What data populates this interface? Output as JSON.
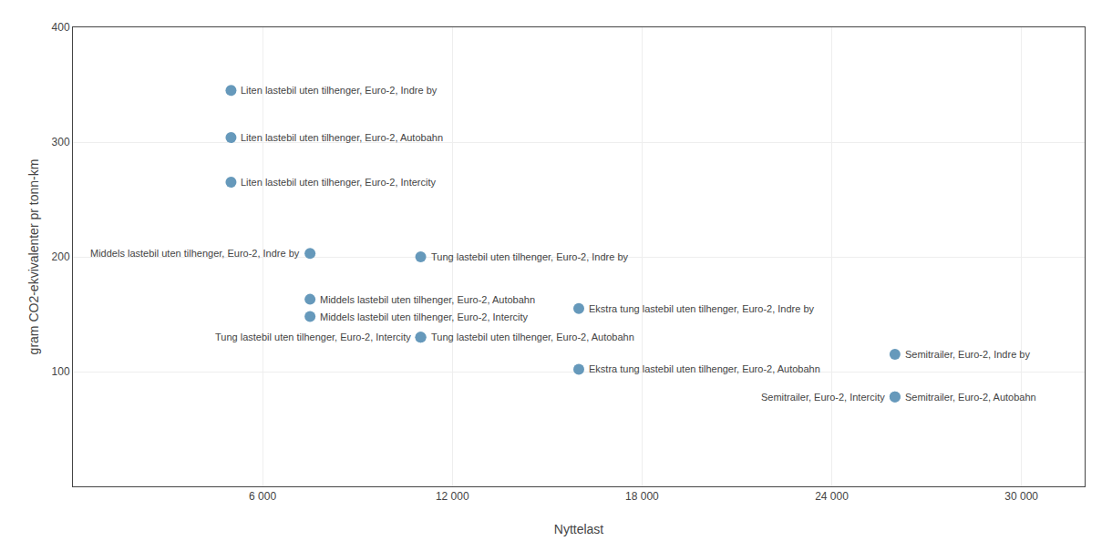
{
  "chart_data": {
    "type": "scatter",
    "x": [
      5000,
      5000,
      5000,
      7500,
      7500,
      7500,
      11000,
      11000,
      11000,
      16000,
      16000,
      26000,
      26000,
      26000
    ],
    "values": [
      345,
      304,
      265,
      203,
      163,
      148,
      200,
      130,
      130,
      155,
      102,
      115,
      78,
      78
    ],
    "labels": [
      "Liten lastebil uten tilhenger, Euro-2, Indre by",
      "Liten lastebil uten tilhenger, Euro-2, Autobahn",
      "Liten lastebil uten tilhenger, Euro-2, Intercity",
      "Middels lastebil uten tilhenger, Euro-2, Indre by",
      "Middels lastebil uten tilhenger, Euro-2, Autobahn",
      "Middels lastebil uten tilhenger, Euro-2, Intercity",
      "Tung lastebil uten tilhenger, Euro-2, Indre by",
      "Tung lastebil uten tilhenger, Euro-2, Autobahn",
      "Tung lastebil uten tilhenger, Euro-2, Intercity",
      "Ekstra tung lastebil uten tilhenger, Euro-2, Indre by",
      "Ekstra tung lastebil uten tilhenger, Euro-2, Autobahn",
      "Semitrailer, Euro-2, Indre by",
      "Semitrailer, Euro-2, Autobahn",
      "Semitrailer, Euro-2, Intercity"
    ],
    "color": "#6699bb",
    "xlabel": "Nyttelast",
    "ylabel": "gram CO2-ekvivalenter pr tonn-km",
    "xlim": [
      0,
      32000
    ],
    "ylim": [
      0,
      400
    ],
    "xticks": [
      {
        "value": 6000,
        "label": "6 000"
      },
      {
        "value": 12000,
        "label": "12 000"
      },
      {
        "value": 18000,
        "label": "18 000"
      },
      {
        "value": 24000,
        "label": "24 000"
      },
      {
        "value": 30000,
        "label": "30 000"
      }
    ],
    "yticks": [
      100,
      200,
      300,
      400
    ],
    "grid": true
  }
}
